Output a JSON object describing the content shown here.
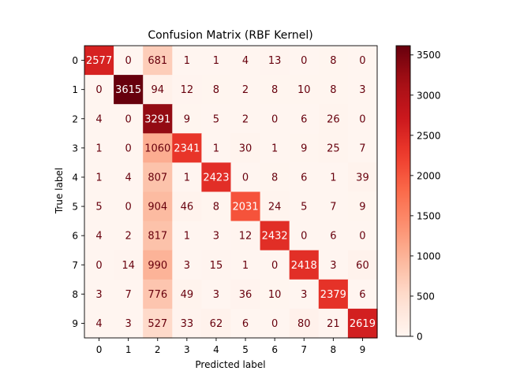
{
  "chart_data": {
    "type": "heatmap",
    "title": "Confusion Matrix (RBF Kernel)",
    "xlabel": "Predicted label",
    "ylabel": "True label",
    "x_categories": [
      "0",
      "1",
      "2",
      "3",
      "4",
      "5",
      "6",
      "7",
      "8",
      "9"
    ],
    "y_categories": [
      "0",
      "1",
      "2",
      "3",
      "4",
      "5",
      "6",
      "7",
      "8",
      "9"
    ],
    "matrix": [
      [
        2577,
        0,
        681,
        1,
        1,
        4,
        13,
        0,
        8,
        0
      ],
      [
        0,
        3615,
        94,
        12,
        8,
        2,
        8,
        10,
        8,
        3
      ],
      [
        4,
        0,
        3291,
        9,
        5,
        2,
        0,
        6,
        26,
        0
      ],
      [
        1,
        0,
        1060,
        2341,
        1,
        30,
        1,
        9,
        25,
        7
      ],
      [
        1,
        4,
        807,
        1,
        2423,
        0,
        8,
        6,
        1,
        39
      ],
      [
        5,
        0,
        904,
        46,
        8,
        2031,
        24,
        5,
        7,
        9
      ],
      [
        4,
        2,
        817,
        1,
        3,
        12,
        2432,
        0,
        6,
        0
      ],
      [
        0,
        14,
        990,
        3,
        15,
        1,
        0,
        2418,
        3,
        60
      ],
      [
        3,
        7,
        776,
        49,
        3,
        36,
        10,
        3,
        2379,
        6
      ],
      [
        4,
        3,
        527,
        33,
        62,
        6,
        0,
        80,
        21,
        2619
      ]
    ],
    "colormap": "Reds",
    "colorbar": {
      "ticks": [
        0,
        500,
        1000,
        1500,
        2000,
        2500,
        3000,
        3500
      ],
      "range": [
        0,
        3615
      ]
    },
    "grid": false
  }
}
